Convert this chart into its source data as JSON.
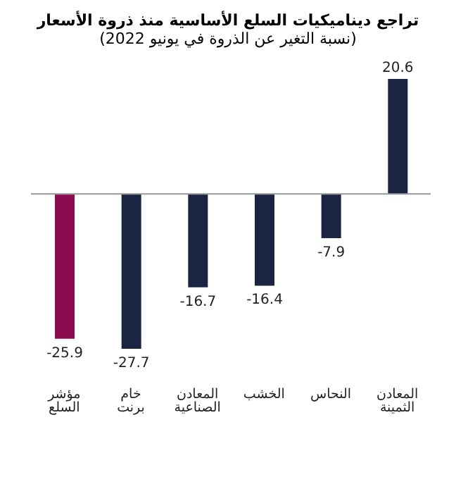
{
  "chart_data": {
    "type": "bar",
    "title": "تراجع ديناميكيات السلع الأساسية منذ ذروة الأسعار",
    "subtitle": "(نسبة التغير عن الذروة في يونيو 2022)",
    "categories": [
      "مؤشر السلع",
      "خام برنت",
      "المعادن الصناعية",
      "الخشب",
      "النحاس",
      "المعادن الثمينة"
    ],
    "values": [
      -25.9,
      -27.7,
      -16.7,
      -16.4,
      -7.9,
      20.6
    ],
    "colors": [
      "#8b0d4f",
      "#1b2440",
      "#1b2440",
      "#1b2440",
      "#1b2440",
      "#1b2440"
    ],
    "data_labels": true
  }
}
